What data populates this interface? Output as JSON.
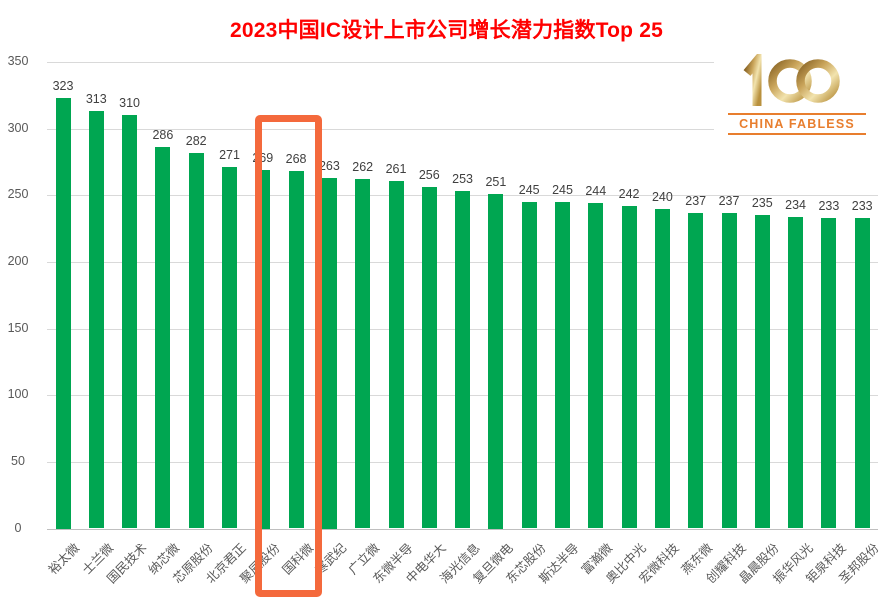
{
  "title": "2023中国IC设计上市公司增长潜力指数Top 25",
  "logo": {
    "number": "100",
    "text": "CHINA FABLESS",
    "gold_dark": "#8a6526",
    "gold_mid": "#caa55b",
    "gold_light": "#f2e3ae",
    "orange": "#E87E2E"
  },
  "chart_data": {
    "type": "bar",
    "title": "2023中国IC设计上市公司增长潜力指数Top 25",
    "categories": [
      "裕太微",
      "士兰微",
      "国民技术",
      "纳芯微",
      "芯原股份",
      "北京君正",
      "聚辰股份",
      "国科微",
      "寒武纪",
      "广立微",
      "东微半导",
      "中电华大",
      "海光信息",
      "复旦微电",
      "东芯股份",
      "斯达半导",
      "富瀚微",
      "奥比中光",
      "宏微科技",
      "燕东微",
      "创耀科技",
      "晶晨股份",
      "振华风光",
      "钜泉科技",
      "圣邦股份"
    ],
    "values": [
      323,
      313,
      310,
      286,
      282,
      271,
      269,
      268,
      263,
      262,
      261,
      256,
      253,
      251,
      245,
      245,
      244,
      242,
      240,
      237,
      237,
      235,
      234,
      233,
      233
    ],
    "xlabel": "",
    "ylabel": "",
    "ylim": [
      0,
      350
    ],
    "yticks": [
      0,
      50,
      100,
      150,
      200,
      250,
      300,
      350
    ],
    "grid": true,
    "legend": "none",
    "bar_color": "#00A651",
    "value_label_color": "#404040",
    "axis_label_color": "#595959",
    "gridline_color": "#D9D9D9",
    "highlight": {
      "category": "国科微",
      "index": 7,
      "value": 268,
      "box_color": "#F4693C"
    }
  }
}
